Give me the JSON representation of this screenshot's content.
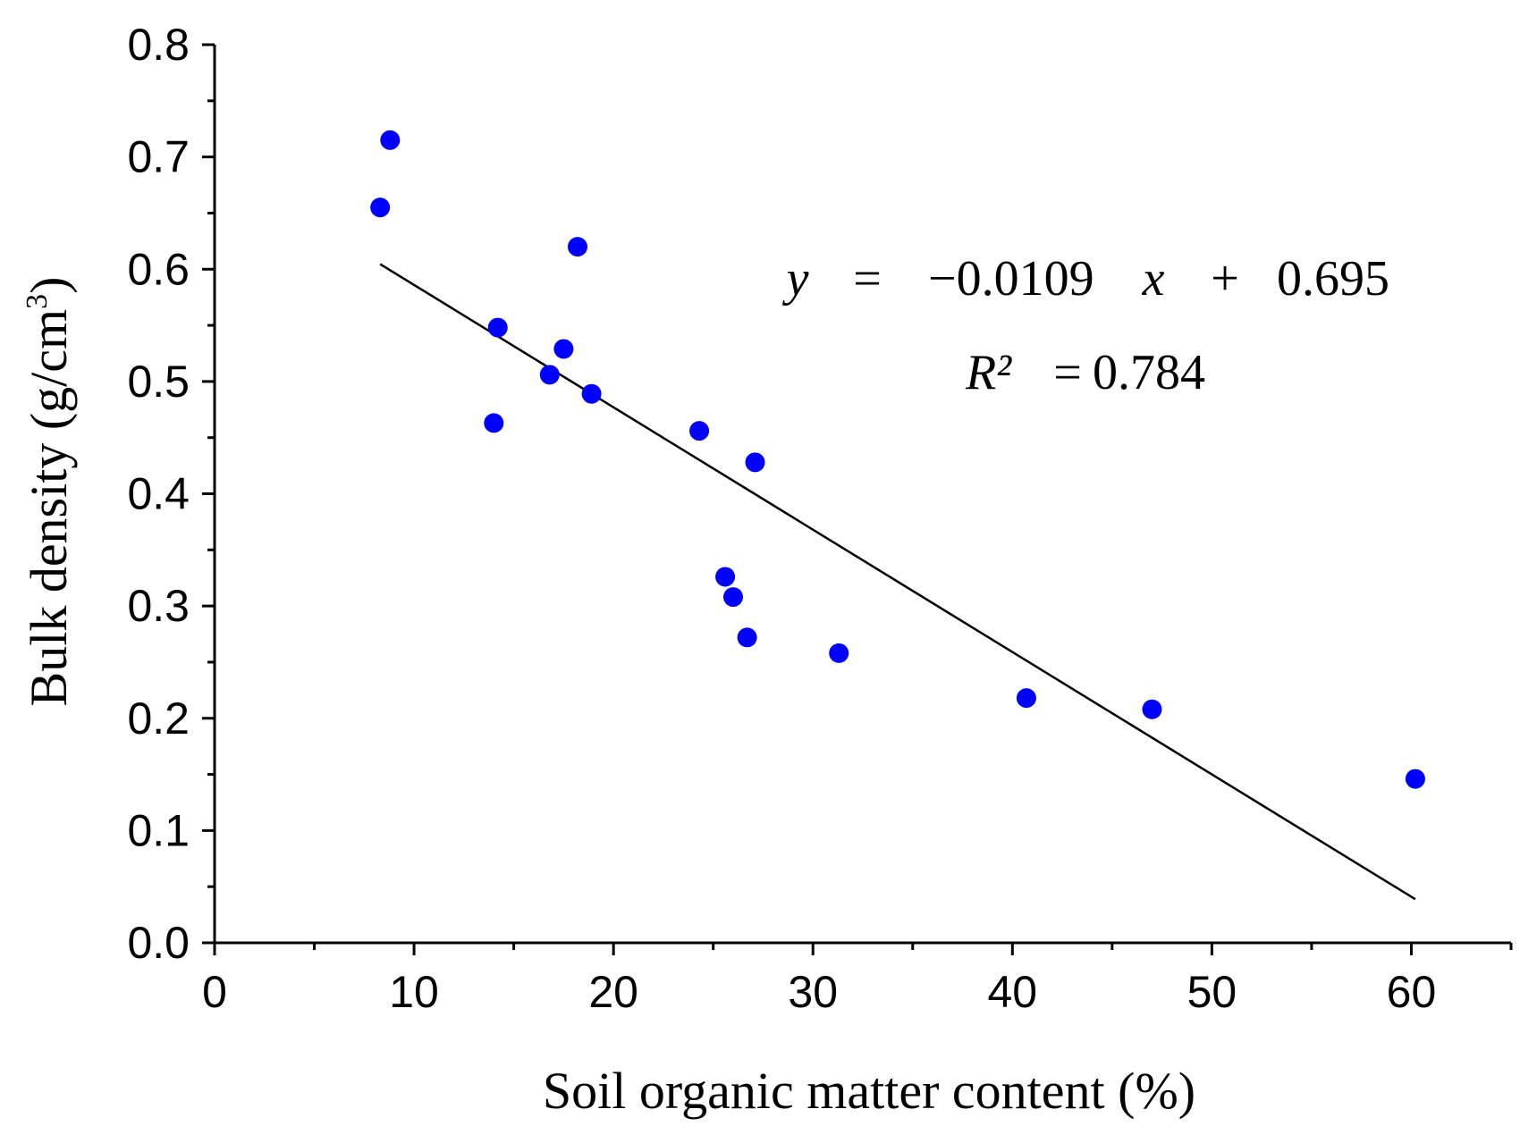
{
  "chart_data": {
    "type": "scatter",
    "title": "",
    "xlabel": "Soil organic matter content (%)",
    "ylabel_main": "Bulk density (g/cm",
    "ylabel_sup": "3",
    "ylabel_close": ")",
    "xlim": [
      0,
      65
    ],
    "ylim": [
      0.0,
      0.8
    ],
    "xticks": [
      0,
      10,
      20,
      30,
      40,
      50,
      60
    ],
    "xtick_labels": [
      "0",
      "10",
      "20",
      "30",
      "40",
      "50",
      "60"
    ],
    "yticks": [
      0.0,
      0.1,
      0.2,
      0.3,
      0.4,
      0.5,
      0.6,
      0.7,
      0.8
    ],
    "ytick_labels": [
      "0.0",
      "0.1",
      "0.2",
      "0.3",
      "0.4",
      "0.5",
      "0.6",
      "0.7",
      "0.8"
    ],
    "x_minor_step": 5,
    "y_minor_step": 0.05,
    "grid": false,
    "series": [
      {
        "name": "samples",
        "color": "#0000ff",
        "points": [
          {
            "x": 8.3,
            "y": 0.655
          },
          {
            "x": 8.8,
            "y": 0.715
          },
          {
            "x": 14.0,
            "y": 0.463
          },
          {
            "x": 14.2,
            "y": 0.548
          },
          {
            "x": 16.8,
            "y": 0.506
          },
          {
            "x": 17.5,
            "y": 0.529
          },
          {
            "x": 18.2,
            "y": 0.62
          },
          {
            "x": 18.9,
            "y": 0.489
          },
          {
            "x": 24.3,
            "y": 0.456
          },
          {
            "x": 25.6,
            "y": 0.326
          },
          {
            "x": 26.0,
            "y": 0.308
          },
          {
            "x": 26.7,
            "y": 0.272
          },
          {
            "x": 27.1,
            "y": 0.428
          },
          {
            "x": 31.3,
            "y": 0.258
          },
          {
            "x": 40.7,
            "y": 0.218
          },
          {
            "x": 47.0,
            "y": 0.208
          },
          {
            "x": 60.2,
            "y": 0.146
          }
        ]
      }
    ],
    "fit_line": {
      "slope": -0.0109,
      "intercept": 0.695,
      "x_start": 8.3,
      "x_end": 60.2,
      "color": "#000000"
    },
    "annotations": {
      "eq_y": "y",
      "eq_equals": "=",
      "eq_coef": "−0.0109",
      "eq_x": "x",
      "eq_plus": "+",
      "eq_const": "0.695",
      "r2_label": "R²",
      "r2_equals": "=",
      "r2_value": "0.784"
    }
  }
}
